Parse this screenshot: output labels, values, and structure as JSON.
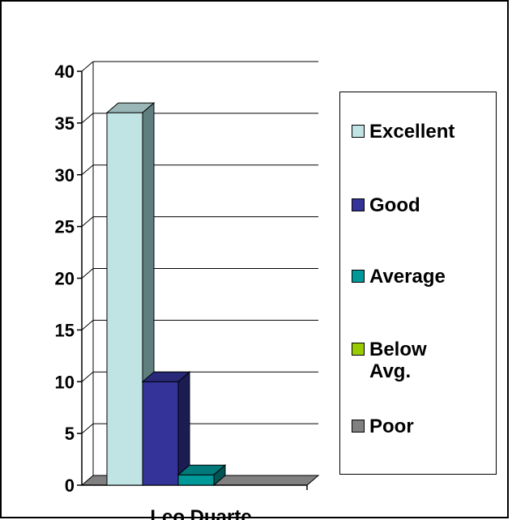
{
  "chart_data": {
    "type": "bar",
    "categories": [
      "Leo Duarte"
    ],
    "series": [
      {
        "name": "Excellent",
        "values": [
          36
        ],
        "color": "#C0E4E4"
      },
      {
        "name": "Good",
        "values": [
          10
        ],
        "color": "#333399"
      },
      {
        "name": "Average",
        "values": [
          1
        ],
        "color": "#009999"
      },
      {
        "name": "Below Avg.",
        "values": [
          0
        ],
        "color": "#99CC00"
      },
      {
        "name": "Poor",
        "values": [
          0
        ],
        "color": "#808080"
      }
    ],
    "yticks": [
      "0",
      "5",
      "10",
      "15",
      "20",
      "25",
      "30",
      "35",
      "40"
    ],
    "ylim": [
      0,
      40
    ],
    "grid": true,
    "legend_position": "right",
    "style": "3d"
  }
}
